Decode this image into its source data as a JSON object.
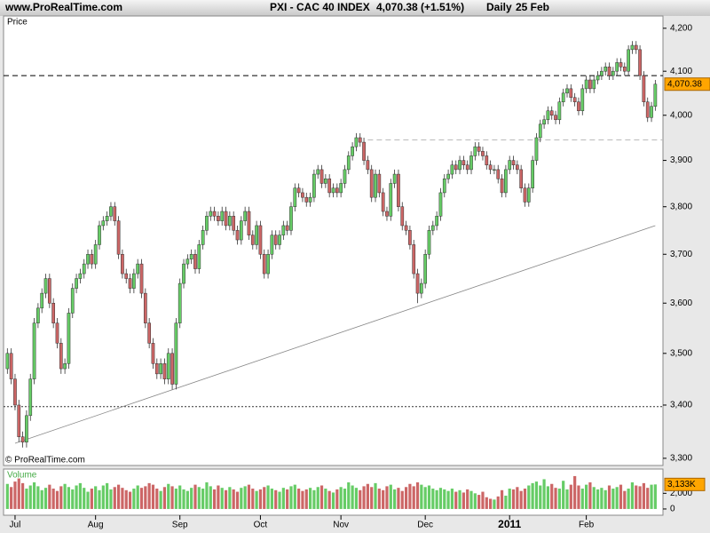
{
  "chart_data": {
    "type": "candlestick",
    "site": "www.ProRealTime.com",
    "symbol": "PXI - CAC 40 INDEX",
    "quote": "4,070.38 (+1.51%)",
    "period": "Daily",
    "date": "25 Feb",
    "panel_label": "Price",
    "copyright": "© ProRealTime.com",
    "log_scale": true,
    "ylim": [
      3290,
      4229
    ],
    "yticks": [
      {
        "value": 3300,
        "label": "3,300"
      },
      {
        "value": 3400,
        "label": "3,400"
      },
      {
        "value": 3500,
        "label": "3,500"
      },
      {
        "value": 3600,
        "label": "3,600"
      },
      {
        "value": 3700,
        "label": "3,700"
      },
      {
        "value": 3800,
        "label": "3,800"
      },
      {
        "value": 3900,
        "label": "3,900"
      },
      {
        "value": 4000,
        "label": "4,000"
      },
      {
        "value": 4100,
        "label": "4,100"
      },
      {
        "value": 4200,
        "label": "4,200"
      }
    ],
    "xlim": [
      -1,
      171
    ],
    "xticks": [
      {
        "value": 2,
        "label": "Jul"
      },
      {
        "value": 23,
        "label": "Aug"
      },
      {
        "value": 45,
        "label": "Sep"
      },
      {
        "value": 66,
        "label": "Oct"
      },
      {
        "value": 87,
        "label": "Nov"
      },
      {
        "value": 109,
        "label": "Dec"
      },
      {
        "value": 131,
        "label": "2011"
      },
      {
        "value": 151,
        "label": "Feb"
      }
    ],
    "up_color": "#66cc66",
    "down_color": "#cc6666",
    "last": {
      "value": 4070.38,
      "label": "4,070.38",
      "color": "#ffa500"
    },
    "lines": [
      {
        "style": "dashed",
        "color": "#000000",
        "value": 4090,
        "from": -1
      },
      {
        "style": "dashed",
        "color": "#bbbbbb",
        "value": 3945,
        "from": 94
      },
      {
        "style": "dotted",
        "color": "#333333",
        "value": 3397,
        "from": -1
      }
    ],
    "trendline": {
      "color": "#888888",
      "x": [
        2,
        169
      ],
      "y": [
        3328,
        3760
      ]
    },
    "open": [
      3470,
      3500,
      3450,
      3400,
      3340,
      3330,
      3380,
      3450,
      3560,
      3590,
      3620,
      3650,
      3600,
      3560,
      3520,
      3470,
      3480,
      3580,
      3630,
      3650,
      3660,
      3680,
      3700,
      3680,
      3720,
      3760,
      3770,
      3780,
      3800,
      3770,
      3700,
      3660,
      3650,
      3630,
      3660,
      3680,
      3620,
      3560,
      3520,
      3480,
      3460,
      3480,
      3450,
      3500,
      3440,
      3560,
      3640,
      3680,
      3690,
      3700,
      3670,
      3720,
      3750,
      3780,
      3790,
      3780,
      3770,
      3790,
      3760,
      3780,
      3750,
      3730,
      3770,
      3790,
      3740,
      3720,
      3760,
      3700,
      3660,
      3700,
      3740,
      3720,
      3740,
      3760,
      3750,
      3800,
      3840,
      3830,
      3820,
      3810,
      3820,
      3870,
      3880,
      3850,
      3860,
      3830,
      3840,
      3830,
      3850,
      3880,
      3910,
      3930,
      3950,
      3940,
      3900,
      3880,
      3820,
      3870,
      3830,
      3790,
      3780,
      3850,
      3870,
      3800,
      3760,
      3750,
      3720,
      3660,
      3620,
      3640,
      3700,
      3750,
      3760,
      3780,
      3830,
      3860,
      3870,
      3890,
      3880,
      3900,
      3890,
      3880,
      3910,
      3930,
      3920,
      3910,
      3890,
      3880,
      3880,
      3860,
      3830,
      3880,
      3900,
      3890,
      3880,
      3840,
      3810,
      3840,
      3900,
      3950,
      3980,
      3990,
      4010,
      4000,
      3990,
      4030,
      4050,
      4060,
      4040,
      4030,
      4010,
      4060,
      4080,
      4060,
      4080,
      4090,
      4100,
      4110,
      4090,
      4100,
      4120,
      4110,
      4100,
      4150,
      4160,
      4150,
      4090,
      4030,
      3995,
      4020
    ],
    "high": [
      3510,
      3510,
      3460,
      3410,
      3350,
      3390,
      3460,
      3570,
      3600,
      3630,
      3660,
      3660,
      3610,
      3570,
      3530,
      3490,
      3590,
      3640,
      3660,
      3670,
      3690,
      3710,
      3710,
      3730,
      3770,
      3780,
      3790,
      3810,
      3810,
      3780,
      3710,
      3670,
      3660,
      3670,
      3690,
      3690,
      3630,
      3570,
      3530,
      3490,
      3490,
      3490,
      3510,
      3510,
      3570,
      3650,
      3690,
      3700,
      3710,
      3710,
      3730,
      3760,
      3790,
      3800,
      3800,
      3790,
      3800,
      3800,
      3790,
      3790,
      3760,
      3780,
      3800,
      3800,
      3750,
      3770,
      3770,
      3710,
      3710,
      3750,
      3750,
      3750,
      3770,
      3770,
      3810,
      3850,
      3850,
      3840,
      3830,
      3830,
      3880,
      3890,
      3890,
      3870,
      3870,
      3850,
      3850,
      3860,
      3890,
      3920,
      3940,
      3960,
      3960,
      3950,
      3910,
      3890,
      3880,
      3880,
      3840,
      3800,
      3860,
      3880,
      3880,
      3810,
      3770,
      3760,
      3730,
      3670,
      3650,
      3710,
      3760,
      3770,
      3790,
      3840,
      3870,
      3880,
      3900,
      3900,
      3910,
      3910,
      3900,
      3920,
      3940,
      3940,
      3930,
      3920,
      3900,
      3890,
      3890,
      3870,
      3890,
      3910,
      3910,
      3900,
      3890,
      3850,
      3850,
      3910,
      3960,
      3990,
      4000,
      4020,
      4020,
      4010,
      4040,
      4060,
      4070,
      4070,
      4050,
      4040,
      4070,
      4090,
      4090,
      4090,
      4100,
      4110,
      4120,
      4120,
      4110,
      4130,
      4130,
      4120,
      4160,
      4170,
      4170,
      4160,
      4100,
      4040,
      4030,
      4080
    ],
    "low": [
      3460,
      3440,
      3390,
      3330,
      3320,
      3320,
      3370,
      3440,
      3550,
      3580,
      3610,
      3590,
      3550,
      3510,
      3460,
      3460,
      3470,
      3570,
      3620,
      3640,
      3650,
      3670,
      3670,
      3670,
      3710,
      3750,
      3760,
      3770,
      3760,
      3690,
      3650,
      3640,
      3620,
      3620,
      3650,
      3610,
      3550,
      3510,
      3470,
      3450,
      3450,
      3440,
      3440,
      3430,
      3430,
      3550,
      3630,
      3670,
      3680,
      3660,
      3660,
      3710,
      3740,
      3770,
      3770,
      3760,
      3760,
      3750,
      3750,
      3740,
      3720,
      3720,
      3760,
      3730,
      3710,
      3710,
      3690,
      3650,
      3650,
      3690,
      3710,
      3710,
      3730,
      3740,
      3740,
      3790,
      3820,
      3810,
      3800,
      3800,
      3810,
      3860,
      3840,
      3840,
      3820,
      3820,
      3820,
      3820,
      3840,
      3870,
      3900,
      3920,
      3930,
      3890,
      3870,
      3810,
      3810,
      3820,
      3780,
      3770,
      3770,
      3840,
      3790,
      3750,
      3740,
      3710,
      3650,
      3600,
      3610,
      3630,
      3690,
      3740,
      3750,
      3770,
      3820,
      3850,
      3860,
      3870,
      3870,
      3880,
      3870,
      3870,
      3900,
      3910,
      3900,
      3880,
      3870,
      3870,
      3850,
      3820,
      3820,
      3870,
      3880,
      3870,
      3830,
      3800,
      3800,
      3830,
      3890,
      3940,
      3970,
      3980,
      3990,
      3980,
      3980,
      4020,
      4040,
      4030,
      4020,
      4000,
      4000,
      4050,
      4050,
      4050,
      4070,
      4080,
      4090,
      4080,
      4080,
      4090,
      4100,
      4090,
      4090,
      4140,
      4140,
      4080,
      4020,
      3985,
      3985,
      4010
    ],
    "close": [
      3500,
      3450,
      3400,
      3340,
      3330,
      3380,
      3450,
      3560,
      3590,
      3620,
      3650,
      3600,
      3560,
      3520,
      3470,
      3480,
      3580,
      3630,
      3650,
      3660,
      3680,
      3700,
      3680,
      3720,
      3760,
      3770,
      3780,
      3800,
      3770,
      3700,
      3660,
      3650,
      3630,
      3660,
      3680,
      3620,
      3560,
      3520,
      3480,
      3460,
      3480,
      3450,
      3500,
      3440,
      3560,
      3640,
      3680,
      3690,
      3700,
      3670,
      3720,
      3750,
      3780,
      3790,
      3780,
      3770,
      3790,
      3760,
      3780,
      3750,
      3730,
      3770,
      3790,
      3740,
      3720,
      3760,
      3700,
      3660,
      3700,
      3740,
      3720,
      3740,
      3760,
      3750,
      3800,
      3840,
      3830,
      3820,
      3810,
      3820,
      3870,
      3880,
      3850,
      3860,
      3830,
      3840,
      3830,
      3850,
      3880,
      3910,
      3930,
      3950,
      3940,
      3900,
      3880,
      3820,
      3870,
      3830,
      3790,
      3780,
      3850,
      3870,
      3800,
      3760,
      3750,
      3720,
      3660,
      3620,
      3640,
      3700,
      3750,
      3760,
      3780,
      3830,
      3860,
      3870,
      3890,
      3880,
      3900,
      3890,
      3880,
      3910,
      3930,
      3920,
      3910,
      3890,
      3880,
      3880,
      3860,
      3830,
      3880,
      3900,
      3890,
      3880,
      3840,
      3810,
      3840,
      3900,
      3950,
      3980,
      3990,
      4010,
      4000,
      3990,
      4030,
      4050,
      4060,
      4040,
      4030,
      4010,
      4060,
      4080,
      4060,
      4080,
      4090,
      4100,
      4110,
      4090,
      4100,
      4120,
      4110,
      4100,
      4150,
      4160,
      4150,
      4090,
      4030,
      3995,
      4020,
      4070.38
    ],
    "volume_panel": {
      "label": "Volume",
      "ylim": [
        -800,
        5100
      ],
      "yticks": [
        0,
        {
          "value": 2000,
          "label": "2,000"
        }
      ],
      "last": {
        "value": 3133,
        "label": "3,133K",
        "color": "#ffa500"
      },
      "values": [
        3200,
        2800,
        3500,
        3900,
        3300,
        2600,
        3000,
        3400,
        2900,
        2400,
        2700,
        3100,
        2600,
        2300,
        2900,
        3200,
        2800,
        2500,
        3000,
        3300,
        2700,
        2200,
        2600,
        2900,
        2400,
        3000,
        3300,
        2500,
        2800,
        3100,
        2700,
        2400,
        2200,
        2600,
        3000,
        2700,
        2900,
        3300,
        3100,
        2600,
        2300,
        2800,
        3200,
        2900,
        2600,
        3000,
        2500,
        2300,
        2700,
        3100,
        2800,
        2600,
        3400,
        2900,
        2500,
        3000,
        2700,
        2400,
        2800,
        2500,
        2200,
        2700,
        2900,
        3100,
        2600,
        2300,
        2500,
        2800,
        3000,
        2600,
        2400,
        2200,
        2700,
        2500,
        2900,
        3100,
        2600,
        2300,
        2500,
        2700,
        2400,
        2800,
        3000,
        2600,
        2300,
        2100,
        2500,
        2800,
        2600,
        3400,
        3000,
        2700,
        2400,
        2900,
        3200,
        2800,
        3300,
        2600,
        2400,
        2900,
        3100,
        2500,
        2700,
        2300,
        2800,
        3200,
        2900,
        3400,
        3100,
        2800,
        3000,
        2600,
        2400,
        2700,
        2500,
        2300,
        2600,
        2200,
        2400,
        2100,
        2500,
        2300,
        2000,
        1800,
        2200,
        1500,
        1300,
        1200,
        1600,
        2400,
        1700,
        2600,
        2500,
        2800,
        2300,
        2600,
        3000,
        3300,
        3500,
        3000,
        3800,
        2900,
        3200,
        2700,
        2600,
        3600,
        2500,
        3100,
        4200,
        3000,
        2600,
        3100,
        3400,
        2800,
        2500,
        2700,
        2400,
        3000,
        2600,
        2800,
        3100,
        2300,
        2600,
        3400,
        3000,
        2900,
        3300,
        2700,
        3100,
        3133
      ]
    }
  }
}
